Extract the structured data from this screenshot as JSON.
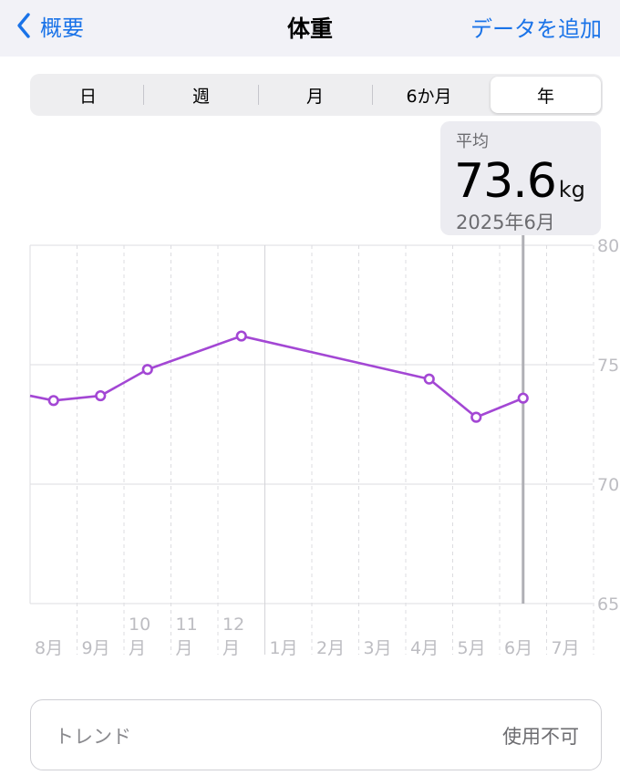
{
  "nav": {
    "back_label": "概要",
    "title": "体重",
    "action_label": "データを追加"
  },
  "tabs": [
    {
      "label": "日",
      "active": false
    },
    {
      "label": "週",
      "active": false
    },
    {
      "label": "月",
      "active": false
    },
    {
      "label": "6か月",
      "active": false
    },
    {
      "label": "年",
      "active": true
    }
  ],
  "summary": {
    "label": "平均",
    "value": "73.6",
    "unit": "kg",
    "date": "2025年6月"
  },
  "trend": {
    "label": "トレンド",
    "value": "使用不可"
  },
  "chart_data": {
    "type": "line",
    "y_ticks": [
      80,
      75,
      70,
      65
    ],
    "ylim": [
      65,
      80
    ],
    "x_ticks": [
      {
        "line1": "8月",
        "line2": ""
      },
      {
        "line1": "9月",
        "line2": ""
      },
      {
        "line1": "10",
        "line2": "月"
      },
      {
        "line1": "11",
        "line2": "月"
      },
      {
        "line1": "12",
        "line2": "月"
      },
      {
        "line1": "1月",
        "line2": ""
      },
      {
        "line1": "2月",
        "line2": ""
      },
      {
        "line1": "3月",
        "line2": ""
      },
      {
        "line1": "4月",
        "line2": ""
      },
      {
        "line1": "5月",
        "line2": ""
      },
      {
        "line1": "6月",
        "line2": ""
      },
      {
        "line1": "7月",
        "line2": ""
      }
    ],
    "series": [
      {
        "color": "#a347d4",
        "points": [
          {
            "month_index": 0,
            "value": 73.5
          },
          {
            "month_index": 1,
            "value": 73.7
          },
          {
            "month_index": 2,
            "value": 74.8
          },
          {
            "month_index": 4,
            "value": 76.2
          },
          {
            "month_index": 8,
            "value": 74.4
          },
          {
            "month_index": 9,
            "value": 72.8
          },
          {
            "month_index": 10,
            "value": 73.6
          }
        ],
        "lead_in_value": 73.7
      }
    ],
    "selected_month_index": 10,
    "grid": true,
    "line_color": "#a347d4"
  }
}
